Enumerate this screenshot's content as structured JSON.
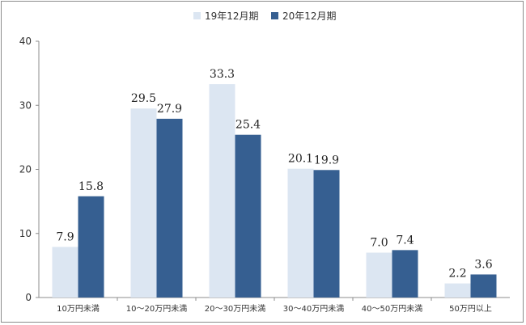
{
  "chart_data": {
    "type": "bar",
    "categories": [
      "10万円未満",
      "10～20万円未満",
      "20～30万円未満",
      "30～40万円未満",
      "40～50万円未満",
      "50万円以上"
    ],
    "series": [
      {
        "name": "19年12月期",
        "values": [
          7.9,
          29.5,
          33.3,
          20.1,
          7.0,
          2.2
        ],
        "color": "#dce6f2"
      },
      {
        "name": "20年12月期",
        "values": [
          15.8,
          27.9,
          25.4,
          19.9,
          7.4,
          3.6
        ],
        "color": "#365f91"
      }
    ],
    "ylim": [
      0,
      40
    ],
    "yticks": [
      0,
      10,
      20,
      30,
      40
    ],
    "grid": false,
    "legend_position": "top-center",
    "data_labels": true
  }
}
